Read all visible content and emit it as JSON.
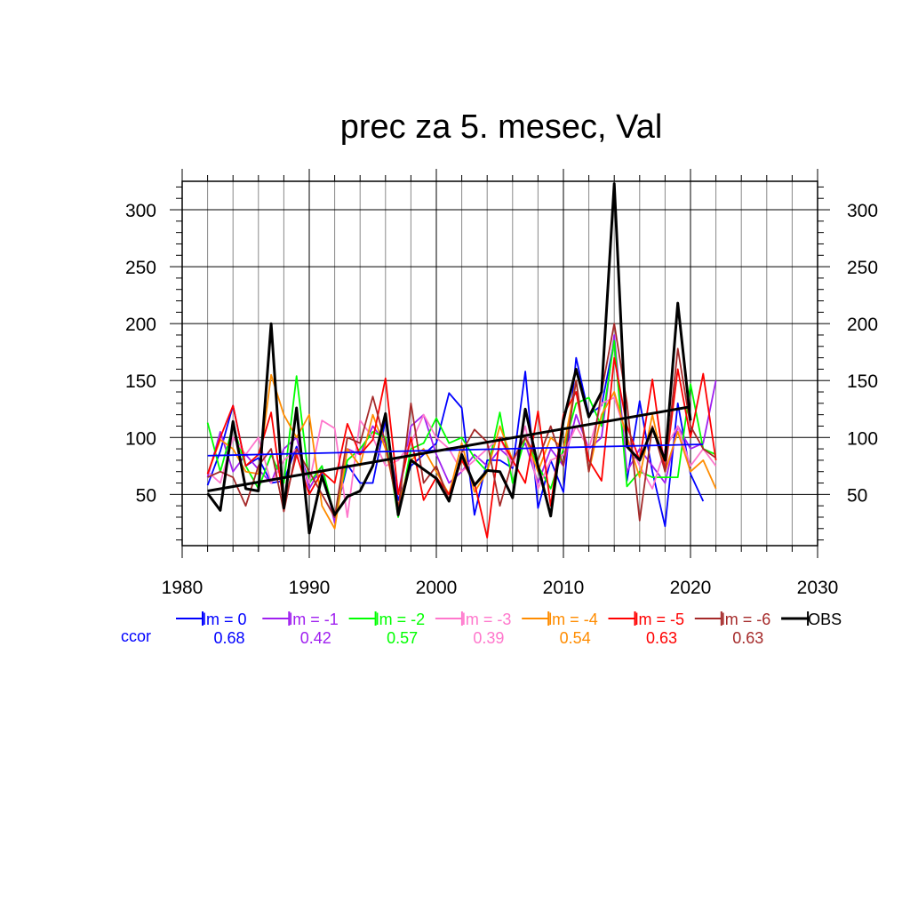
{
  "chart_data": {
    "type": "line",
    "title": "prec za 5. mesec, Val",
    "xlabel": "",
    "ylabel": "",
    "xlim": [
      1980,
      2030
    ],
    "ylim": [
      5,
      325
    ],
    "x_ticks": [
      1980,
      1990,
      2000,
      2010,
      2020,
      2030
    ],
    "y_ticks": [
      50,
      100,
      150,
      200,
      250,
      300
    ],
    "grid": true,
    "legend_position": "bottom",
    "ccor_label": "ccor",
    "series": [
      {
        "name": "lm = 0",
        "color": "#0000ff",
        "ccor": "0.68",
        "x": [
          1982,
          1983,
          1984,
          1985,
          1986,
          1987,
          1988,
          1989,
          1990,
          1991,
          1992,
          1993,
          1994,
          1995,
          1996,
          1997,
          1998,
          1999,
          2000,
          2001,
          2002,
          2003,
          2004,
          2005,
          2006,
          2007,
          2008,
          2009,
          2010,
          2011,
          2012,
          2013,
          2014,
          2015,
          2016,
          2017,
          2018,
          2019,
          2020,
          2021
        ],
        "y": [
          58,
          88,
          128,
          75,
          82,
          60,
          62,
          92,
          62,
          68,
          30,
          76,
          60,
          60,
          115,
          45,
          75,
          85,
          95,
          139,
          126,
          32,
          80,
          80,
          73,
          158,
          38,
          80,
          52,
          170,
          120,
          128,
          185,
          62,
          132,
          70,
          22,
          130,
          68,
          44
        ],
        "trend": [
          84,
          94
        ]
      },
      {
        "name": "lm = -1",
        "color": "#a020f0",
        "ccor": "0.42",
        "x": [
          1982,
          1983,
          1984,
          1985,
          1986,
          1987,
          1988,
          1989,
          1990,
          1991,
          1992,
          1993,
          1994,
          1995,
          1996,
          1997,
          1998,
          1999,
          2000,
          2001,
          2002,
          2003,
          2004,
          2005,
          2006,
          2007,
          2008,
          2009,
          2010,
          2011,
          2012,
          2013,
          2014,
          2015,
          2016,
          2017,
          2018,
          2019,
          2020,
          2021,
          2022
        ],
        "y": [
          65,
          105,
          70,
          85,
          72,
          60,
          90,
          100,
          55,
          75,
          25,
          90,
          85,
          110,
          95,
          50,
          110,
          120,
          85,
          60,
          70,
          85,
          75,
          90,
          80,
          95,
          60,
          90,
          75,
          120,
          90,
          100,
          190,
          70,
          90,
          75,
          60,
          110,
          90,
          95,
          150
        ]
      },
      {
        "name": "lm = -2",
        "color": "#00ff00",
        "ccor": "0.57",
        "x": [
          1982,
          1983,
          1984,
          1985,
          1986,
          1987,
          1988,
          1989,
          1990,
          1991,
          1992,
          1993,
          1994,
          1995,
          1996,
          1997,
          1998,
          1999,
          2000,
          2001,
          2002,
          2003,
          2004,
          2005,
          2006,
          2007,
          2008,
          2009,
          2010,
          2011,
          2012,
          2013,
          2014,
          2015,
          2016,
          2017,
          2018,
          2019,
          2020,
          2021,
          2022
        ],
        "y": [
          113,
          70,
          110,
          75,
          55,
          85,
          60,
          154,
          60,
          75,
          30,
          80,
          90,
          105,
          100,
          30,
          90,
          95,
          117,
          95,
          100,
          82,
          70,
          122,
          60,
          100,
          75,
          55,
          90,
          130,
          135,
          110,
          185,
          57,
          70,
          65,
          65,
          65,
          147,
          90,
          85
        ]
      },
      {
        "name": "lm = -3",
        "color": "#ff77cc",
        "ccor": "0.39",
        "x": [
          1982,
          1983,
          1984,
          1985,
          1986,
          1987,
          1988,
          1989,
          1990,
          1991,
          1992,
          1993,
          1994,
          1995,
          1996,
          1997,
          1998,
          1999,
          2000,
          2001,
          2002,
          2003,
          2004,
          2005,
          2006,
          2007,
          2008,
          2009,
          2010,
          2011,
          2012,
          2013,
          2014,
          2015,
          2016,
          2017,
          2018,
          2019,
          2020,
          2021,
          2022
        ],
        "y": [
          70,
          60,
          100,
          85,
          100,
          60,
          80,
          90,
          60,
          115,
          108,
          30,
          115,
          100,
          75,
          80,
          95,
          120,
          100,
          90,
          70,
          80,
          90,
          100,
          75,
          110,
          55,
          80,
          85,
          110,
          90,
          130,
          135,
          100,
          75,
          55,
          90,
          110,
          75,
          90,
          75
        ]
      },
      {
        "name": "lm = -4",
        "color": "#ff8c00",
        "ccor": "0.54",
        "x": [
          1982,
          1983,
          1984,
          1985,
          1986,
          1987,
          1988,
          1989,
          1990,
          1991,
          1992,
          1993,
          1994,
          1995,
          1996,
          1997,
          1998,
          1999,
          2000,
          2001,
          2002,
          2003,
          2004,
          2005,
          2006,
          2007,
          2008,
          2009,
          2010,
          2011,
          2012,
          2013,
          2014,
          2015,
          2016,
          2017,
          2018,
          2019,
          2020,
          2021,
          2022
        ],
        "y": [
          68,
          98,
          90,
          70,
          68,
          155,
          120,
          100,
          120,
          40,
          20,
          90,
          75,
          120,
          90,
          40,
          80,
          90,
          70,
          50,
          95,
          52,
          70,
          110,
          80,
          100,
          70,
          100,
          90,
          150,
          70,
          120,
          140,
          100,
          65,
          120,
          70,
          105,
          70,
          80,
          55
        ]
      },
      {
        "name": "lm = -5",
        "color": "#ff0000",
        "ccor": "0.63",
        "x": [
          1982,
          1983,
          1984,
          1985,
          1986,
          1987,
          1988,
          1989,
          1990,
          1991,
          1992,
          1993,
          1994,
          1995,
          1996,
          1997,
          1998,
          1999,
          2000,
          2001,
          2002,
          2003,
          2004,
          2005,
          2006,
          2007,
          2008,
          2009,
          2010,
          2011,
          2012,
          2013,
          2014,
          2015,
          2016,
          2017,
          2018,
          2019,
          2020,
          2021,
          2022
        ],
        "y": [
          68,
          100,
          128,
          75,
          85,
          122,
          40,
          85,
          50,
          70,
          60,
          112,
          85,
          98,
          152,
          50,
          100,
          45,
          65,
          50,
          80,
          60,
          12,
          100,
          80,
          60,
          123,
          40,
          120,
          140,
          80,
          62,
          170,
          110,
          80,
          151,
          70,
          160,
          100,
          156,
          80
        ]
      },
      {
        "name": "lm = -6",
        "color": "#a52a2a",
        "ccor": "0.63",
        "x": [
          1982,
          1983,
          1984,
          1985,
          1986,
          1987,
          1988,
          1989,
          1990,
          1991,
          1992,
          1993,
          1994,
          1995,
          1996,
          1997,
          1998,
          1999,
          2000,
          2001,
          2002,
          2003,
          2004,
          2005,
          2006,
          2007,
          2008,
          2009,
          2010,
          2011,
          2012,
          2013,
          2014,
          2015,
          2016,
          2017,
          2018,
          2019,
          2020,
          2021,
          2022
        ],
        "y": [
          65,
          70,
          65,
          40,
          75,
          90,
          35,
          90,
          70,
          50,
          30,
          100,
          95,
          136,
          95,
          35,
          130,
          60,
          75,
          45,
          87,
          107,
          96,
          40,
          80,
          100,
          80,
          110,
          75,
          150,
          70,
          140,
          200,
          130,
          27,
          110,
          70,
          178,
          110,
          90,
          82
        ]
      },
      {
        "name": "OBS",
        "color": "#000000",
        "ccor": "",
        "x": [
          1982,
          1983,
          1984,
          1985,
          1986,
          1987,
          1988,
          1989,
          1990,
          1991,
          1992,
          1993,
          1994,
          1995,
          1996,
          1997,
          1998,
          1999,
          2000,
          2001,
          2002,
          2003,
          2004,
          2005,
          2006,
          2007,
          2008,
          2009,
          2010,
          2011,
          2012,
          2013,
          2014,
          2015,
          2016,
          2017,
          2018,
          2019,
          2020
        ],
        "y": [
          51,
          36,
          114,
          55,
          53,
          200,
          38,
          126,
          16,
          66,
          32,
          48,
          53,
          75,
          121,
          32,
          80,
          72,
          64,
          44,
          85,
          58,
          71,
          70,
          47,
          125,
          75,
          31,
          115,
          160,
          118,
          140,
          323,
          92,
          80,
          108,
          80,
          218,
          115
        ],
        "trend": [
          53,
          127
        ]
      }
    ]
  }
}
